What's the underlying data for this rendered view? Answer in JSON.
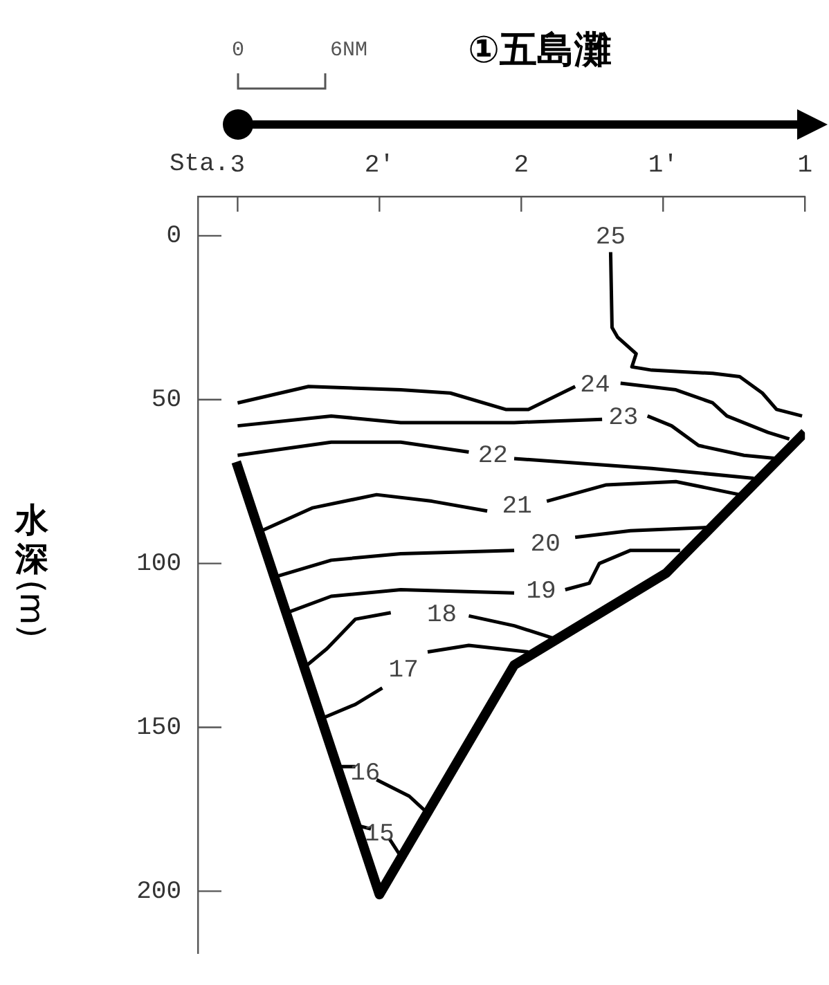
{
  "chart_data": {
    "type": "line",
    "title": "①五島灘",
    "xlabel": "Sta.",
    "ylabel": "水深(m)",
    "xlim": [
      3.14,
      1
    ],
    "xticks": [
      3,
      {
        "value": 2.5,
        "label": "2′"
      },
      2,
      {
        "value": 1.5,
        "label": "1′"
      },
      1
    ],
    "ylim": [
      219,
      -12
    ],
    "yticks": [
      0,
      50,
      100,
      150,
      200
    ],
    "series": [
      {
        "color": "#000000",
        "x": [
          3.005,
          2.5,
          2.025,
          1.49,
          1.0
        ],
        "values": [
          69,
          201,
          131,
          103,
          60
        ]
      },
      {
        "name": "25",
        "color": "#000000",
        "x": [
          1.685,
          1.68,
          1.66,
          1.595,
          1.61,
          1.54,
          1.325,
          1.23,
          1.15,
          1.1,
          1.01
        ],
        "values": [
          5,
          28,
          31,
          36,
          40,
          41,
          42,
          43,
          48,
          53,
          55
        ]
      },
      {
        "name": "24",
        "color": "#000000",
        "x": [
          3,
          2.75,
          2.425,
          2.25,
          2.055,
          1.975,
          1.81,
          1.74,
          1.65,
          1.455,
          1.325,
          1.275,
          1.13,
          1.055
        ],
        "values": [
          51,
          46,
          47,
          48,
          53,
          53,
          46,
          null,
          45,
          47,
          51,
          55,
          60,
          62
        ]
      },
      {
        "name": "23",
        "color": "#000000",
        "x": [
          3,
          2.67,
          2.425,
          2.025,
          1.715,
          1.64,
          1.555,
          1.47,
          1.375,
          1.215,
          1.095
        ],
        "values": [
          58,
          55,
          57,
          57,
          56,
          null,
          55,
          58,
          64,
          67,
          68
        ]
      },
      {
        "name": "22",
        "color": "#000000",
        "x": [
          3,
          2.67,
          2.425,
          2.185,
          2.1,
          2.025,
          1.7,
          1.54,
          1.18
        ],
        "values": [
          67,
          63,
          63,
          66,
          null,
          68,
          70,
          71,
          74
        ]
      },
      {
        "name": "21",
        "color": "#000000",
        "x": [
          2.915,
          2.735,
          2.51,
          2.315,
          2.12,
          2.015,
          1.91,
          1.7,
          1.455,
          1.23
        ],
        "values": [
          90,
          83,
          79,
          81,
          84,
          null,
          81,
          76,
          75,
          79
        ]
      },
      {
        "name": "20",
        "color": "#000000",
        "x": [
          2.865,
          2.67,
          2.425,
          2.025,
          1.915,
          1.81,
          1.615,
          1.345
        ],
        "values": [
          104,
          99,
          97,
          96,
          null,
          92,
          90,
          89
        ]
      },
      {
        "name": "19",
        "color": "#000000",
        "x": [
          2.825,
          2.67,
          2.425,
          2.025,
          1.93,
          1.845,
          1.76,
          1.725,
          1.615,
          1.44
        ],
        "values": [
          115,
          110,
          108,
          109,
          null,
          108,
          106,
          100,
          96,
          96
        ]
      },
      {
        "name": "18",
        "color": "#000000",
        "x": [
          2.755,
          2.685,
          2.585,
          2.46,
          2.28,
          2.185,
          2.025,
          1.88
        ],
        "values": [
          131,
          126,
          117,
          115,
          null,
          116,
          119,
          123
        ]
      },
      {
        "name": "17",
        "color": "#000000",
        "x": [
          2.695,
          2.585,
          2.49,
          2.415,
          2.33,
          2.185,
          1.975
        ],
        "values": [
          147,
          143,
          138,
          null,
          127,
          125,
          127
        ]
      },
      {
        "name": "16",
        "color": "#000000",
        "x": [
          2.635,
          2.585,
          2.55,
          2.51,
          2.395,
          2.32
        ],
        "values": [
          162,
          162,
          null,
          166,
          171,
          177
        ]
      },
      {
        "name": "15",
        "color": "#000000",
        "x": [
          2.575,
          2.53,
          2.5,
          2.465,
          2.42
        ],
        "values": [
          180,
          181,
          null,
          184,
          190
        ]
      }
    ],
    "annotations": [
      "0",
      "6NM"
    ]
  }
}
